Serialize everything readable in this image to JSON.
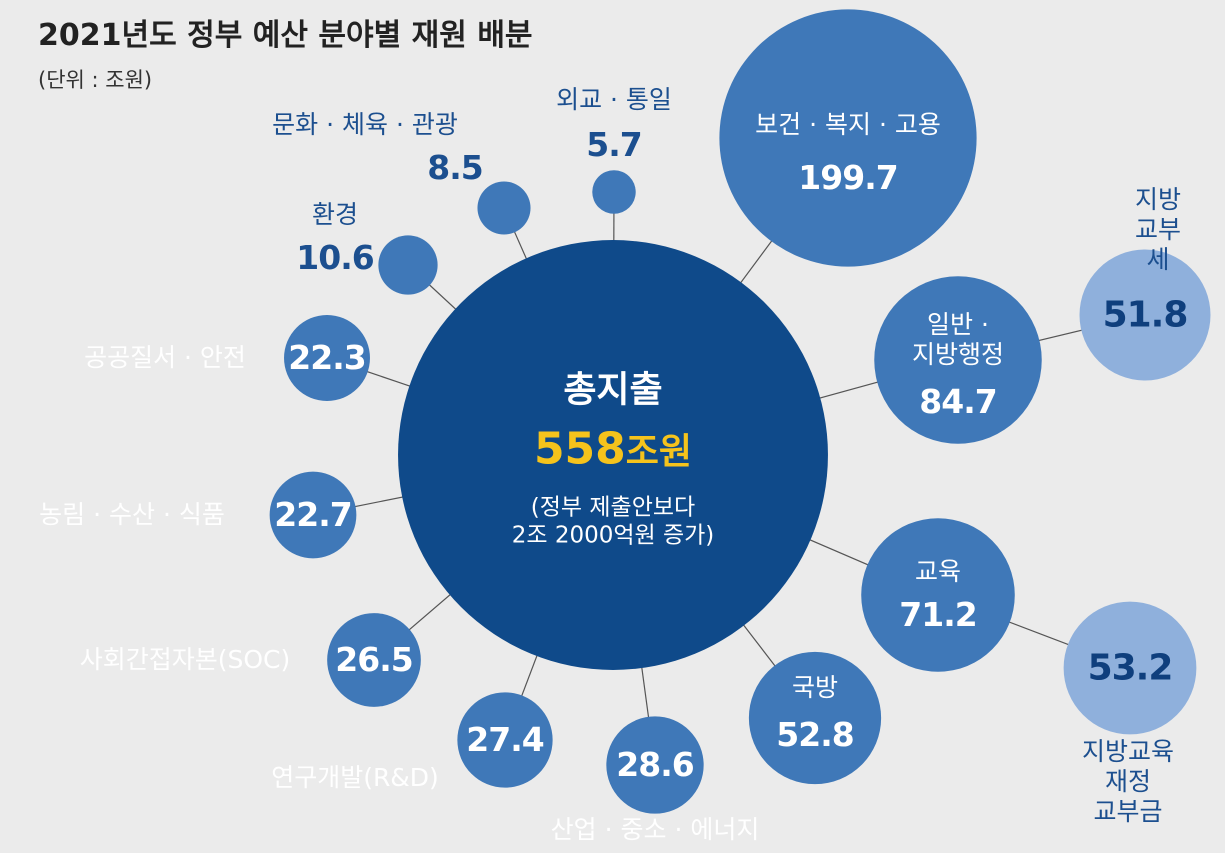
{
  "chart_data": {
    "type": "bubble",
    "title": "2021년도 정부 예산 분야별 재원 배분",
    "subtitle": "(단위 : 조원)",
    "total": {
      "label": "총지출",
      "value": 558,
      "unit": "조원",
      "note": "(정부 제출안보다\n2조 2000억원 증가)",
      "color": "#0f4a8a"
    },
    "categories": [
      "보건 · 복지 · 고용",
      "외교 · 통일",
      "문화 · 체육 · 관광",
      "환경",
      "공공질서 · 안전",
      "농림 · 수산 · 식품",
      "사회간접자본(SOC)",
      "연구개발(R&D)",
      "산업 · 중소 · 에너지",
      "국방",
      "교육",
      "일반 ·\n지방행정",
      "지방 교부세",
      "지방교육재정\n교부금"
    ],
    "values": [
      199.7,
      5.7,
      8.5,
      10.6,
      22.3,
      22.7,
      26.5,
      27.4,
      28.6,
      52.8,
      71.2,
      84.7,
      51.8,
      53.2
    ],
    "colors": [
      "#3f78b8",
      "#3f78b8",
      "#3f78b8",
      "#3f78b8",
      "#3f78b8",
      "#3f78b8",
      "#3f78b8",
      "#3f78b8",
      "#3f78b8",
      "#3f78b8",
      "#3f78b8",
      "#3f78b8",
      "#8fb0dc",
      "#8fb0dc"
    ]
  }
}
